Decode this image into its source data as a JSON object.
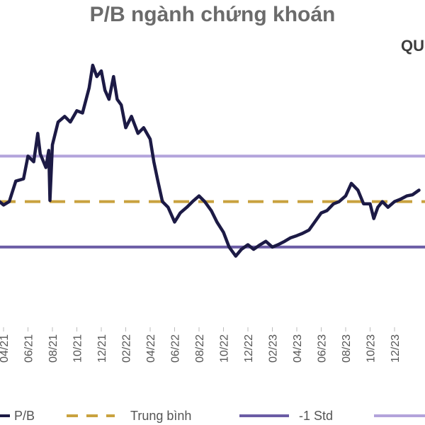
{
  "chart_data": {
    "type": "line",
    "title": "P/B ngành chứng khoán",
    "corner_label": "QU",
    "x_ticks": [
      "04/21",
      "06/21",
      "08/21",
      "10/21",
      "12/21",
      "02/22",
      "04/22",
      "06/22",
      "08/22",
      "10/22",
      "12/22",
      "02/23",
      "04/23",
      "06/23",
      "08/23",
      "10/23",
      "12/23"
    ],
    "ylim": [
      0.8,
      3.2
    ],
    "grid": false,
    "legend_position": "bottom",
    "reference_lines": [
      {
        "name": "Trung bình",
        "value": 1.8,
        "style": "dashed",
        "color": "#C9A23F"
      },
      {
        "name": "-1 Std",
        "value": 1.4,
        "style": "solid",
        "color": "#6B5CA5"
      },
      {
        "name": "",
        "value": 2.2,
        "style": "solid",
        "color": "#B3A3DB"
      }
    ],
    "series": [
      {
        "name": "P/B",
        "color": "#1C1A45",
        "x": [
          "2021-03",
          "2021-04",
          "2021-04-15",
          "2021-05",
          "2021-05-20",
          "2021-06",
          "2021-06-15",
          "2021-06-25",
          "2021-07",
          "2021-07-15",
          "2021-07-22",
          "2021-07-25",
          "2021-08",
          "2021-08-15",
          "2021-09",
          "2021-09-15",
          "2021-10",
          "2021-10-15",
          "2021-11",
          "2021-11-10",
          "2021-11-20",
          "2021-12",
          "2021-12-10",
          "2021-12-20",
          "2022-01",
          "2022-01-10",
          "2022-01-20",
          "2022-02",
          "2022-02-15",
          "2022-03",
          "2022-03-15",
          "2022-04",
          "2022-04-10",
          "2022-04-20",
          "2022-05",
          "2022-05-15",
          "2022-06",
          "2022-06-15",
          "2022-07",
          "2022-07-15",
          "2022-08",
          "2022-08-15",
          "2022-09",
          "2022-09-15",
          "2022-10",
          "2022-10-15",
          "2022-11",
          "2022-11-15",
          "2022-12",
          "2022-12-15",
          "2023-01",
          "2023-01-15",
          "2023-02",
          "2023-02-15",
          "2023-03",
          "2023-03-15",
          "2023-04",
          "2023-04-15",
          "2023-05",
          "2023-05-15",
          "2023-06",
          "2023-06-15",
          "2023-07",
          "2023-07-15",
          "2023-08",
          "2023-08-15",
          "2023-09",
          "2023-09-15",
          "2023-10",
          "2023-10-10",
          "2023-10-20",
          "2023-11",
          "2023-11-15",
          "2023-12",
          "2023-12-15",
          "2024-01",
          "2024-01-15",
          "2024-02"
        ],
        "values": [
          1.86,
          1.77,
          1.8,
          1.98,
          2.0,
          2.2,
          2.15,
          2.4,
          2.22,
          2.1,
          2.25,
          1.81,
          2.3,
          2.5,
          2.55,
          2.5,
          2.6,
          2.58,
          2.8,
          3.0,
          2.9,
          2.95,
          2.78,
          2.7,
          2.9,
          2.7,
          2.65,
          2.45,
          2.55,
          2.4,
          2.45,
          2.35,
          2.15,
          1.98,
          1.8,
          1.75,
          1.62,
          1.7,
          1.75,
          1.8,
          1.85,
          1.8,
          1.72,
          1.62,
          1.53,
          1.4,
          1.32,
          1.38,
          1.42,
          1.38,
          1.42,
          1.45,
          1.4,
          1.42,
          1.45,
          1.48,
          1.5,
          1.52,
          1.55,
          1.62,
          1.7,
          1.72,
          1.78,
          1.8,
          1.85,
          1.96,
          1.9,
          1.78,
          1.78,
          1.65,
          1.75,
          1.8,
          1.75,
          1.8,
          1.82,
          1.85,
          1.86,
          1.9
        ]
      }
    ],
    "legend": [
      {
        "label": "P/B",
        "color": "#1C1A45",
        "style": "solid"
      },
      {
        "label": "Trung bình",
        "color": "#C9A23F",
        "style": "dashed"
      },
      {
        "label": "-1 Std",
        "color": "#6B5CA5",
        "style": "solid"
      },
      {
        "label": "",
        "color": "#B3A3DB",
        "style": "solid"
      }
    ]
  }
}
